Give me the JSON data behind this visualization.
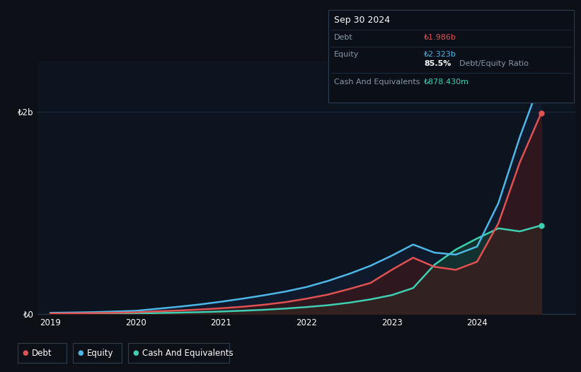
{
  "bg_color": "#0d1117",
  "plot_bg_color": "#0c1420",
  "grid_color": "#1e2d3d",
  "x_years": [
    2019.0,
    2019.25,
    2019.5,
    2019.75,
    2020.0,
    2020.25,
    2020.5,
    2020.75,
    2021.0,
    2021.25,
    2021.5,
    2021.75,
    2022.0,
    2022.25,
    2022.5,
    2022.75,
    2023.0,
    2023.25,
    2023.5,
    2023.75,
    2024.0,
    2024.25,
    2024.5,
    2024.75
  ],
  "debt": [
    0.008,
    0.01,
    0.013,
    0.016,
    0.02,
    0.03,
    0.038,
    0.048,
    0.06,
    0.075,
    0.095,
    0.12,
    0.155,
    0.195,
    0.25,
    0.31,
    0.44,
    0.56,
    0.47,
    0.44,
    0.52,
    0.9,
    1.5,
    1.986
  ],
  "equity": [
    0.015,
    0.018,
    0.022,
    0.028,
    0.035,
    0.055,
    0.075,
    0.098,
    0.125,
    0.155,
    0.188,
    0.225,
    0.27,
    0.33,
    0.4,
    0.48,
    0.58,
    0.69,
    0.61,
    0.59,
    0.67,
    1.1,
    1.75,
    2.323
  ],
  "cash": [
    0.003,
    0.004,
    0.006,
    0.007,
    0.009,
    0.013,
    0.017,
    0.022,
    0.028,
    0.036,
    0.045,
    0.057,
    0.072,
    0.09,
    0.115,
    0.148,
    0.19,
    0.26,
    0.49,
    0.64,
    0.75,
    0.85,
    0.82,
    0.878
  ],
  "debt_color": "#e05252",
  "equity_color": "#4db8e8",
  "cash_color": "#3ecfb2",
  "debt_fill": "#4a1515",
  "equity_fill": "#152038",
  "cash_fill": "#143830",
  "ylim": [
    0,
    2.5
  ],
  "xlim_min": 2018.85,
  "xlim_max": 2025.15,
  "ytick_positions": [
    0.0,
    2.0
  ],
  "ytick_labels": [
    "₺0",
    "₺2b"
  ],
  "xtick_positions": [
    2019.0,
    2020.0,
    2021.0,
    2022.0,
    2023.0,
    2024.0
  ],
  "xtick_labels": [
    "2019",
    "2020",
    "2021",
    "2022",
    "2023",
    "2024"
  ],
  "tooltip_date": "Sep 30 2024",
  "tooltip_debt_label": "Debt",
  "tooltip_debt_value": "₺1.986b",
  "tooltip_equity_label": "Equity",
  "tooltip_equity_value": "₺2.323b",
  "tooltip_ratio": "85.5%",
  "tooltip_ratio_label": "Debt/Equity Ratio",
  "tooltip_cash_label": "Cash And Equivalents",
  "tooltip_cash_value": "₺878.430m",
  "legend_labels": [
    "Debt",
    "Equity",
    "Cash And Equivalents"
  ],
  "legend_colors": [
    "#e05252",
    "#4db8e8",
    "#3ecfb2"
  ]
}
